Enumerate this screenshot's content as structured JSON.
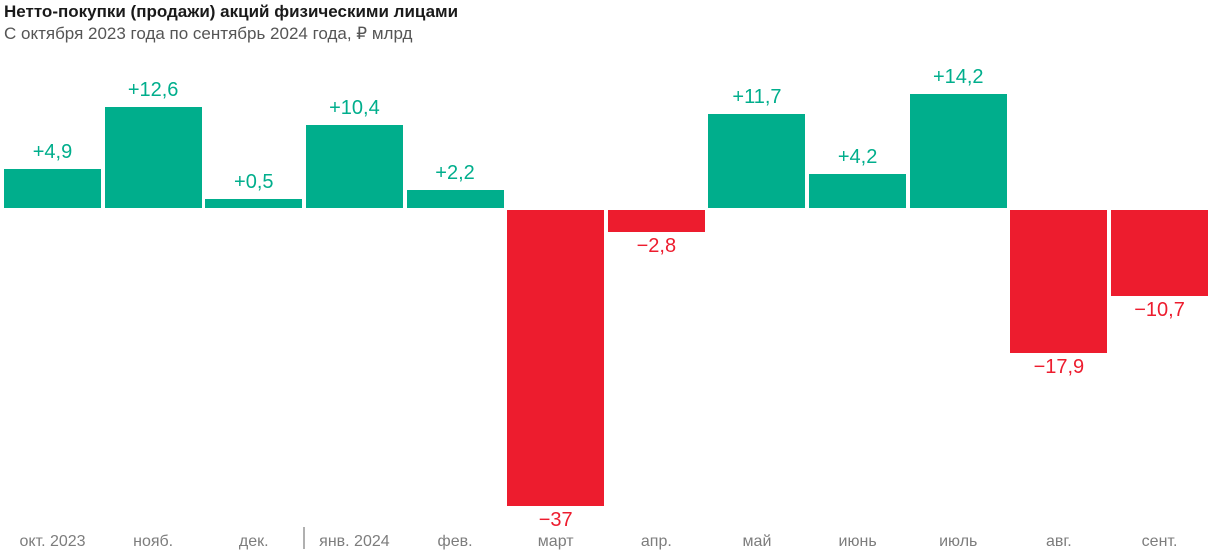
{
  "header": {
    "title": "Нетто-покупки (продажи) акций физическими лицами",
    "subtitle": "С октября 2023 года по сентябрь 2024 года, ₽ млрд"
  },
  "chart_data": {
    "type": "bar",
    "title": "Нетто-покупки (продажи) акций физическими лицами",
    "subtitle": "С октября 2023 года по сентябрь 2024 года, ₽ млрд",
    "unit": "₽ млрд",
    "categories": [
      "окт. 2023",
      "нояб.",
      "дек.",
      "янв. 2024",
      "фев.",
      "март",
      "апр.",
      "май",
      "июнь",
      "июль",
      "авг.",
      "сент."
    ],
    "values": [
      4.9,
      12.6,
      0.5,
      10.4,
      2.2,
      -37,
      -2.8,
      11.7,
      4.2,
      14.2,
      -17.9,
      -10.7
    ],
    "value_labels": [
      "+4,9",
      "+12,6",
      "+0,5",
      "+10,4",
      "+2,2",
      "−37",
      "−2,8",
      "+11,7",
      "+4,2",
      "+14,2",
      "−17,9",
      "−10,7"
    ],
    "ylim": [
      -40,
      18
    ],
    "grid": false,
    "legend": false,
    "x_axis_position": "bottom",
    "year_divider_between": [
      "дек.",
      "янв. 2024"
    ],
    "colors": {
      "positive": "#00AE8C",
      "negative": "#ED1C2E",
      "title": "#1A1A1A",
      "subtitle": "#555555",
      "axis_labels": "#7D7D7D",
      "year_divider": "#B0B0B0"
    }
  }
}
